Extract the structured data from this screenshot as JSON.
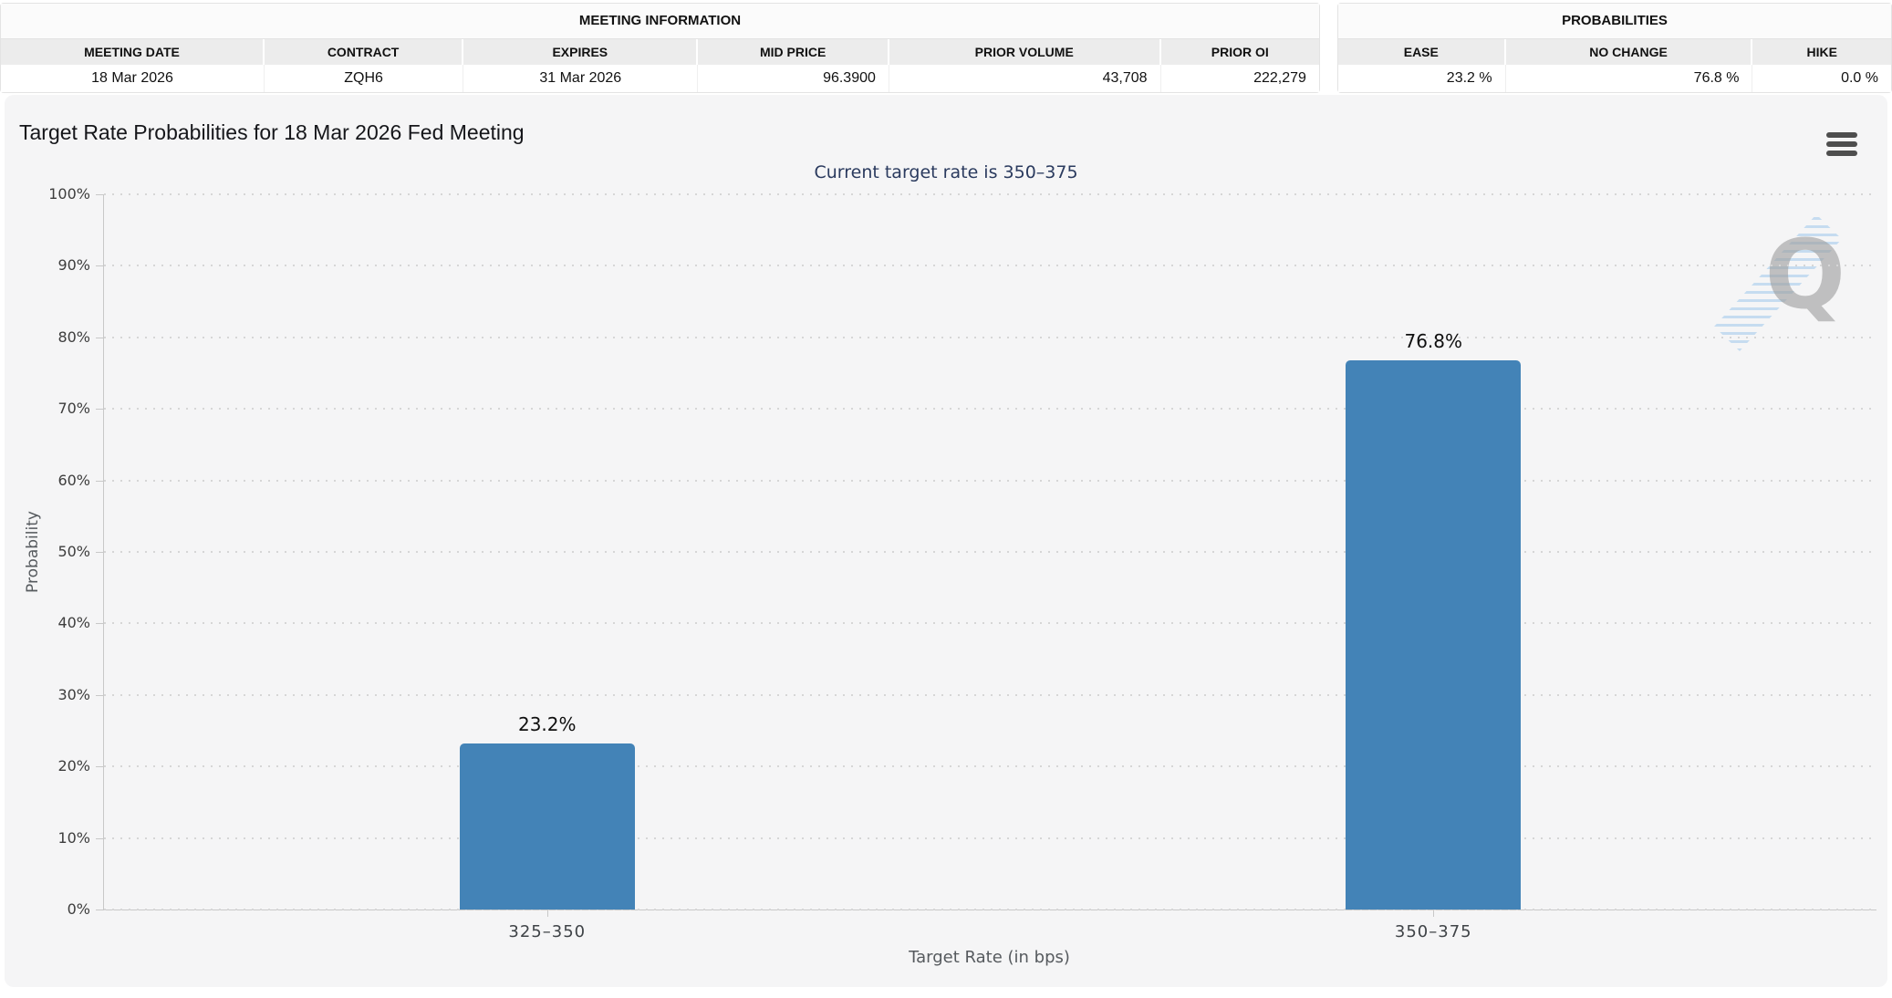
{
  "meeting_information": {
    "title": "MEETING INFORMATION",
    "columns": [
      "MEETING DATE",
      "CONTRACT",
      "EXPIRES",
      "MID PRICE",
      "PRIOR VOLUME",
      "PRIOR OI"
    ],
    "row": {
      "meeting_date": "18 Mar 2026",
      "contract": "ZQH6",
      "expires": "31 Mar 2026",
      "mid_price": "96.3900",
      "prior_volume": "43,708",
      "prior_oi": "222,279"
    }
  },
  "probabilities": {
    "title": "PROBABILITIES",
    "columns": [
      "EASE",
      "NO CHANGE",
      "HIKE"
    ],
    "row": {
      "ease": "23.2 %",
      "no_change": "76.8 %",
      "hike": "0.0 %"
    }
  },
  "chart": {
    "menu_icon": "hamburger-icon",
    "watermark_letter": "Q"
  },
  "chart_data": {
    "type": "bar",
    "title": "Target Rate Probabilities for 18 Mar 2026 Fed Meeting",
    "subtitle": "Current target rate is 350–375",
    "categories": [
      "325–350",
      "350–375"
    ],
    "values": [
      23.2,
      76.8
    ],
    "value_labels": [
      "23.2%",
      "76.8%"
    ],
    "xlabel": "Target Rate (in bps)",
    "ylabel": "Probability",
    "ylim": [
      0,
      100
    ],
    "ytick_step": 10,
    "ytick_labels": [
      "0%",
      "10%",
      "20%",
      "30%",
      "40%",
      "50%",
      "60%",
      "70%",
      "80%",
      "90%",
      "100%"
    ],
    "grid": "dotted-horizontal",
    "legend": "none",
    "bar_color": "#4383b7"
  }
}
